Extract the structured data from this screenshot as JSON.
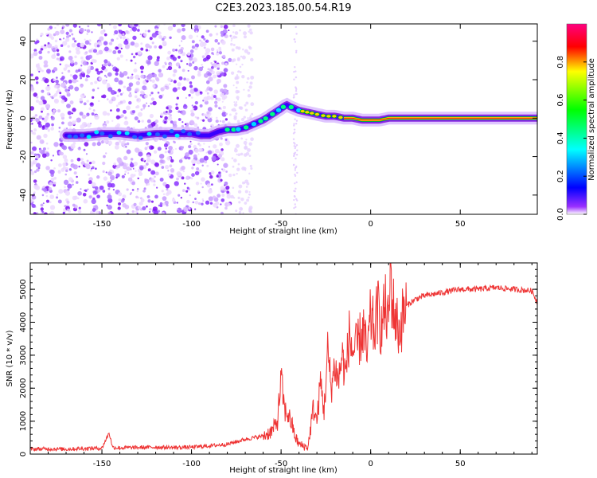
{
  "title": "C2E3.2023.185.00.54.R19",
  "chart_data": [
    {
      "type": "heatmap",
      "xlabel": "Height of straight line (km)",
      "ylabel": "Frequency (Hz)",
      "xlim": [
        -190,
        93
      ],
      "ylim": [
        -50,
        49
      ],
      "xticks": [
        -150,
        -100,
        -50,
        0,
        50
      ],
      "yticks": [
        -40,
        -20,
        0,
        20,
        40
      ],
      "ridge": {
        "x": [
          -170,
          -160,
          -150,
          -140,
          -130,
          -120,
          -110,
          -100,
          -95,
          -90,
          -85,
          -80,
          -75,
          -70,
          -65,
          -60,
          -55,
          -50,
          -47,
          -45,
          -40,
          -35,
          -30,
          -25,
          -20,
          -15,
          -10,
          -5,
          0,
          5,
          10,
          20,
          40,
          60,
          80,
          93
        ],
        "y": [
          -9,
          -9,
          -8,
          -8,
          -9,
          -8,
          -8,
          -8,
          -9,
          -9,
          -7,
          -6,
          -6,
          -5,
          -3,
          -1,
          2,
          5,
          7,
          6,
          4,
          3,
          2,
          1,
          1,
          0,
          0,
          -1,
          -1,
          -1,
          0,
          0,
          0,
          0,
          0,
          0
        ]
      },
      "colorbar": {
        "label": "Normalized spectral amplitude",
        "range": [
          0,
          1
        ],
        "ticks": [
          0.0,
          0.2,
          0.4,
          0.6,
          0.8
        ],
        "colormap": [
          "#ffffff",
          "#7f00ff",
          "#0000ff",
          "#00ffff",
          "#00ff00",
          "#ffff00",
          "#ff0000",
          "#ff0080"
        ]
      },
      "grid": false
    },
    {
      "type": "line",
      "xlabel": "Height of straight line (km)",
      "ylabel": "SNR (10 * v/v)",
      "xlim": [
        -190,
        93
      ],
      "ylim": [
        0,
        5800
      ],
      "xticks": [
        -150,
        -100,
        -50,
        0,
        50
      ],
      "yticks": [
        0,
        1000,
        2000,
        3000,
        4000,
        5000
      ],
      "color": "#ee3333",
      "grid": false,
      "series": [
        {
          "x": [
            -190,
            -180,
            -170,
            -160,
            -150,
            -146,
            -144,
            -140,
            -130,
            -120,
            -110,
            -100,
            -90,
            -80,
            -70,
            -65,
            -60,
            -55,
            -52,
            -50,
            -48,
            -46,
            -44,
            -42,
            -40,
            -38,
            -35,
            -32,
            -30,
            -28,
            -26,
            -24,
            -22,
            -20,
            -18,
            -16,
            -14,
            -12,
            -10,
            -8,
            -6,
            -4,
            -2,
            0,
            2,
            4,
            6,
            8,
            10,
            11,
            12,
            14,
            16,
            18,
            20,
            25,
            30,
            40,
            50,
            60,
            70,
            80,
            90,
            93
          ],
          "y": [
            150,
            160,
            150,
            170,
            180,
            650,
            200,
            190,
            200,
            210,
            200,
            210,
            250,
            300,
            450,
            500,
            550,
            700,
            1000,
            2300,
            1300,
            1200,
            900,
            500,
            300,
            250,
            200,
            1400,
            1000,
            2200,
            1300,
            3100,
            2000,
            2700,
            2200,
            3000,
            2400,
            3600,
            3100,
            3200,
            3500,
            3800,
            2900,
            4200,
            3700,
            4400,
            3800,
            4500,
            3900,
            5700,
            4600,
            4100,
            3700,
            4200,
            4500,
            4700,
            4800,
            4900,
            5000,
            5000,
            5050,
            5000,
            4950,
            4600
          ]
        }
      ]
    }
  ]
}
